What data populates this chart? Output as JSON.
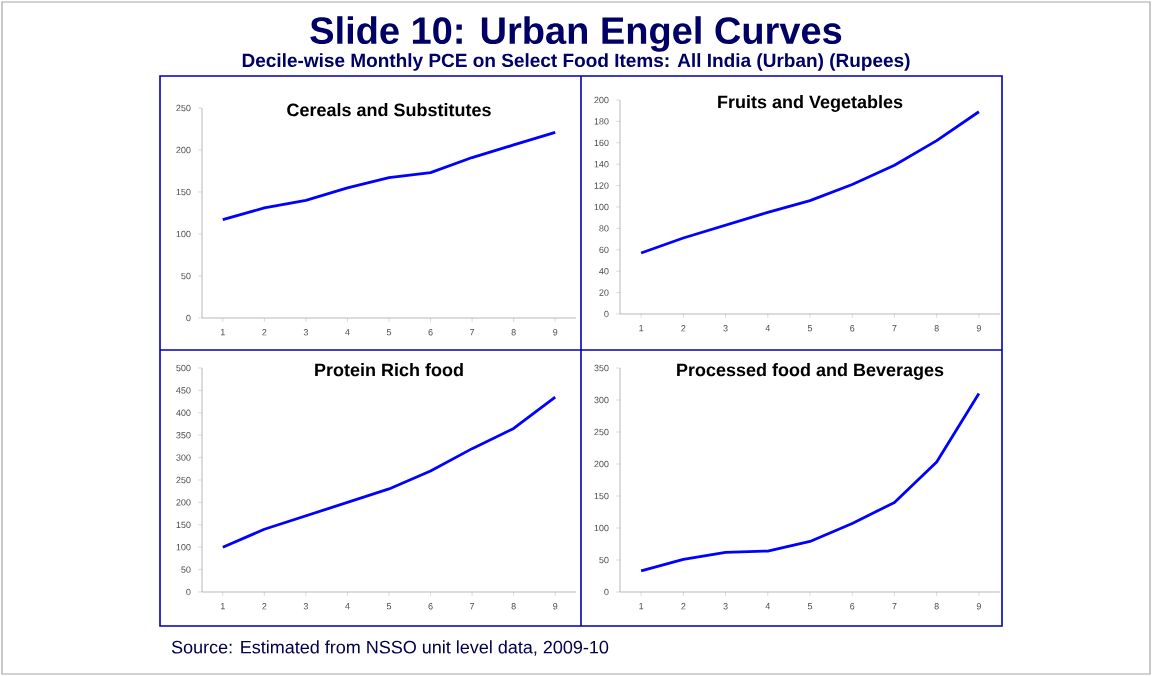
{
  "chart_data": [
    {
      "type": "other",
      "title": "Slide 10: Urban Engel Curves",
      "subtitle": "Decile-wise Monthly PCE on Select Food Items: All India (Urban)      (Rupees)",
      "annotations": [
        "Source: Estimated from NSSO unit level data, 2009-10"
      ]
    },
    {
      "type": "line",
      "title": "Cereals and Substitutes",
      "categories": [
        "1",
        "2",
        "3",
        "4",
        "5",
        "6",
        "7",
        "8",
        "9"
      ],
      "ylim": [
        0,
        250
      ],
      "yticks": [
        0,
        50,
        100,
        150,
        200,
        250
      ],
      "marker": "none",
      "color": "#0000ff",
      "values": [
        117,
        131,
        140,
        155,
        167,
        173,
        191,
        206,
        221
      ]
    },
    {
      "type": "line",
      "title": "Fruits and Vegetables",
      "categories": [
        "1",
        "2",
        "3",
        "4",
        "5",
        "6",
        "7",
        "8",
        "9"
      ],
      "ylim": [
        0,
        200
      ],
      "yticks": [
        0,
        20,
        40,
        60,
        80,
        100,
        120,
        140,
        160,
        180,
        200
      ],
      "marker": "none",
      "color": "#0000ff",
      "values": [
        57,
        71,
        83,
        95,
        106,
        121,
        139,
        162,
        189
      ]
    },
    {
      "type": "line",
      "title": "Protein Rich food",
      "categories": [
        "1",
        "2",
        "3",
        "4",
        "5",
        "6",
        "7",
        "8",
        "9"
      ],
      "ylim": [
        0,
        500
      ],
      "yticks": [
        0,
        50,
        100,
        150,
        200,
        250,
        300,
        350,
        400,
        450,
        500
      ],
      "marker": "none",
      "color": "#0000ff",
      "values": [
        100,
        140,
        170,
        200,
        230,
        270,
        320,
        365,
        435
      ]
    },
    {
      "type": "line",
      "title": "Processed food and Beverages",
      "categories": [
        "1",
        "2",
        "3",
        "4",
        "5",
        "6",
        "7",
        "8",
        "9"
      ],
      "ylim": [
        0,
        350
      ],
      "yticks": [
        0,
        50,
        100,
        150,
        200,
        250,
        300,
        350
      ],
      "marker": "none",
      "color": "#0000ff",
      "values": [
        33,
        51,
        62,
        64,
        79,
        107,
        140,
        203,
        310
      ]
    }
  ]
}
